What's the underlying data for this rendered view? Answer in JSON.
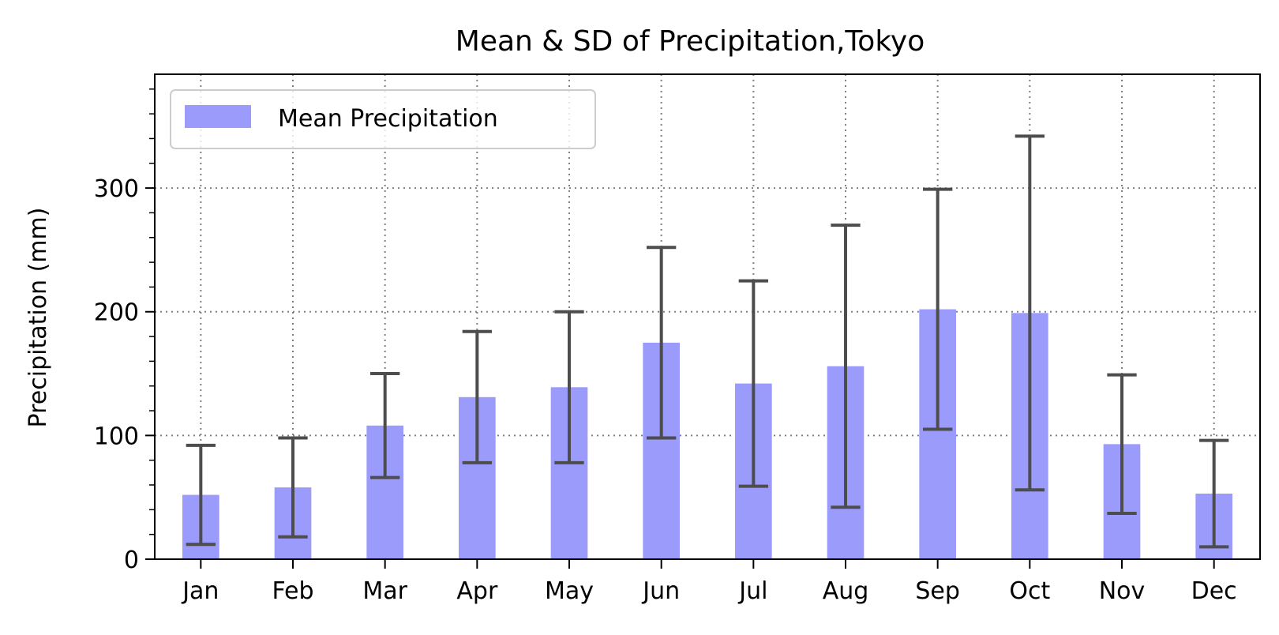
{
  "chart_data": {
    "type": "bar",
    "title": "Mean & SD of Precipitation,Tokyo",
    "xlabel": "",
    "ylabel": "Precipitation (mm)",
    "ylim": [
      0,
      392
    ],
    "yticks": [
      "0",
      "100",
      "200",
      "300"
    ],
    "categories": [
      "Jan",
      "Feb",
      "Mar",
      "Apr",
      "May",
      "Jun",
      "Jul",
      "Aug",
      "Sep",
      "Oct",
      "Nov",
      "Dec"
    ],
    "series": [
      {
        "name": "Mean Precipitation",
        "values": [
          52,
          58,
          108,
          131,
          139,
          175,
          142,
          156,
          202,
          199,
          93,
          53
        ],
        "sd": [
          40,
          40,
          42,
          53,
          61,
          77,
          83,
          114,
          97,
          143,
          56,
          43
        ]
      }
    ],
    "grid": true,
    "legend": "top-left",
    "colors": {
      "bar": "#9b9bfb",
      "errorbar": "#4d4d4d",
      "grid": "#808080"
    }
  }
}
